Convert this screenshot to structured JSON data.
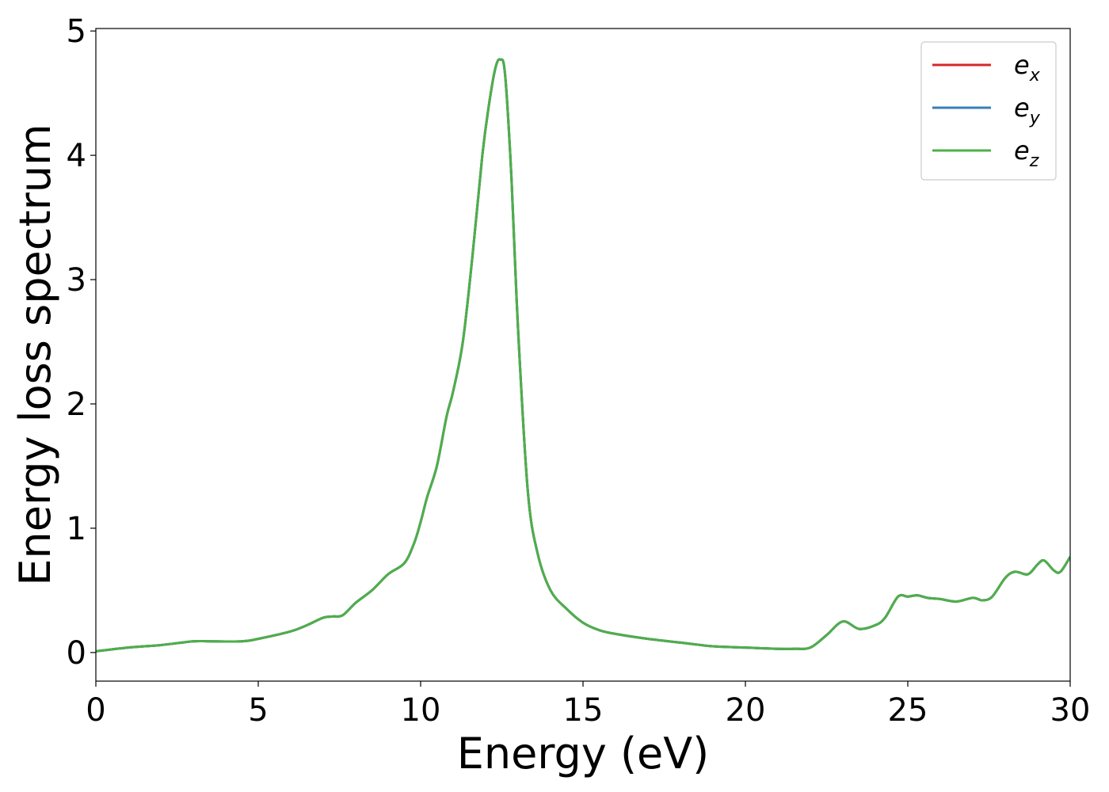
{
  "chart_data": {
    "type": "line",
    "title": "",
    "xlabel": "Energy (eV)",
    "ylabel": "Energy loss spectrum",
    "xlim": [
      0,
      30
    ],
    "ylim": [
      -0.23,
      5.02
    ],
    "xticks": [
      0,
      5,
      10,
      15,
      20,
      25,
      30
    ],
    "yticks": [
      0,
      1,
      2,
      3,
      4,
      5
    ],
    "grid": false,
    "legend_position": "top-right",
    "series": [
      {
        "name": "e",
        "subscript": "x",
        "color": "#d62728",
        "x": [
          0,
          1,
          2,
          3,
          3.5,
          4.5,
          5,
          6,
          6.5,
          7,
          7.3,
          7.6,
          8,
          8.5,
          9,
          9.5,
          9.8,
          10,
          10.2,
          10.5,
          10.8,
          11,
          11.3,
          11.6,
          11.9,
          12.1,
          12.3,
          12.45,
          12.6,
          12.8,
          13,
          13.3,
          13.6,
          14,
          14.5,
          15,
          15.5,
          16,
          17,
          18,
          19,
          20,
          21,
          21.5,
          22,
          22.5,
          23,
          23.5,
          24,
          24.3,
          24.7,
          25,
          25.3,
          25.6,
          26,
          26.5,
          27,
          27.3,
          27.6,
          28,
          28.3,
          28.7,
          29,
          29.2,
          29.5,
          29.7,
          30
        ],
        "y": [
          0.01,
          0.04,
          0.06,
          0.09,
          0.09,
          0.09,
          0.11,
          0.17,
          0.22,
          0.28,
          0.29,
          0.3,
          0.4,
          0.5,
          0.63,
          0.72,
          0.88,
          1.05,
          1.25,
          1.5,
          1.9,
          2.1,
          2.5,
          3.2,
          4.0,
          4.4,
          4.7,
          4.77,
          4.65,
          3.8,
          2.6,
          1.3,
          0.8,
          0.5,
          0.35,
          0.24,
          0.18,
          0.15,
          0.11,
          0.08,
          0.05,
          0.04,
          0.03,
          0.03,
          0.04,
          0.14,
          0.25,
          0.19,
          0.22,
          0.28,
          0.45,
          0.45,
          0.46,
          0.44,
          0.43,
          0.41,
          0.44,
          0.42,
          0.45,
          0.6,
          0.65,
          0.63,
          0.71,
          0.74,
          0.66,
          0.65,
          0.77
        ]
      },
      {
        "name": "e",
        "subscript": "y",
        "color": "#377eb8",
        "x": [
          0,
          1,
          2,
          3,
          3.5,
          4.5,
          5,
          6,
          6.5,
          7,
          7.3,
          7.6,
          8,
          8.5,
          9,
          9.5,
          9.8,
          10,
          10.2,
          10.5,
          10.8,
          11,
          11.3,
          11.6,
          11.9,
          12.1,
          12.3,
          12.45,
          12.6,
          12.8,
          13,
          13.3,
          13.6,
          14,
          14.5,
          15,
          15.5,
          16,
          17,
          18,
          19,
          20,
          21,
          21.5,
          22,
          22.5,
          23,
          23.5,
          24,
          24.3,
          24.7,
          25,
          25.3,
          25.6,
          26,
          26.5,
          27,
          27.3,
          27.6,
          28,
          28.3,
          28.7,
          29,
          29.2,
          29.5,
          29.7,
          30
        ],
        "y": [
          0.01,
          0.04,
          0.06,
          0.09,
          0.09,
          0.09,
          0.11,
          0.17,
          0.22,
          0.28,
          0.29,
          0.3,
          0.4,
          0.5,
          0.63,
          0.72,
          0.88,
          1.05,
          1.25,
          1.5,
          1.9,
          2.1,
          2.5,
          3.2,
          4.0,
          4.4,
          4.7,
          4.77,
          4.65,
          3.8,
          2.6,
          1.3,
          0.8,
          0.5,
          0.35,
          0.24,
          0.18,
          0.15,
          0.11,
          0.08,
          0.05,
          0.04,
          0.03,
          0.03,
          0.04,
          0.14,
          0.25,
          0.19,
          0.22,
          0.28,
          0.45,
          0.45,
          0.46,
          0.44,
          0.43,
          0.41,
          0.44,
          0.42,
          0.45,
          0.6,
          0.65,
          0.63,
          0.71,
          0.74,
          0.66,
          0.65,
          0.77
        ]
      },
      {
        "name": "e",
        "subscript": "z",
        "color": "#4daf4a",
        "x": [
          0,
          1,
          2,
          3,
          3.5,
          4.5,
          5,
          6,
          6.5,
          7,
          7.3,
          7.6,
          8,
          8.5,
          9,
          9.5,
          9.8,
          10,
          10.2,
          10.5,
          10.8,
          11,
          11.3,
          11.6,
          11.9,
          12.1,
          12.3,
          12.45,
          12.6,
          12.8,
          13,
          13.3,
          13.6,
          14,
          14.5,
          15,
          15.5,
          16,
          17,
          18,
          19,
          20,
          21,
          21.5,
          22,
          22.5,
          23,
          23.5,
          24,
          24.3,
          24.7,
          25,
          25.3,
          25.6,
          26,
          26.5,
          27,
          27.3,
          27.6,
          28,
          28.3,
          28.7,
          29,
          29.2,
          29.5,
          29.7,
          30
        ],
        "y": [
          0.01,
          0.04,
          0.06,
          0.09,
          0.09,
          0.09,
          0.11,
          0.17,
          0.22,
          0.28,
          0.29,
          0.3,
          0.4,
          0.5,
          0.63,
          0.72,
          0.88,
          1.05,
          1.25,
          1.5,
          1.9,
          2.1,
          2.5,
          3.2,
          4.0,
          4.4,
          4.7,
          4.77,
          4.65,
          3.8,
          2.6,
          1.3,
          0.8,
          0.5,
          0.35,
          0.24,
          0.18,
          0.15,
          0.11,
          0.08,
          0.05,
          0.04,
          0.03,
          0.03,
          0.04,
          0.14,
          0.25,
          0.19,
          0.22,
          0.28,
          0.45,
          0.45,
          0.46,
          0.44,
          0.43,
          0.41,
          0.44,
          0.42,
          0.45,
          0.6,
          0.65,
          0.63,
          0.71,
          0.74,
          0.66,
          0.65,
          0.77
        ]
      }
    ]
  }
}
